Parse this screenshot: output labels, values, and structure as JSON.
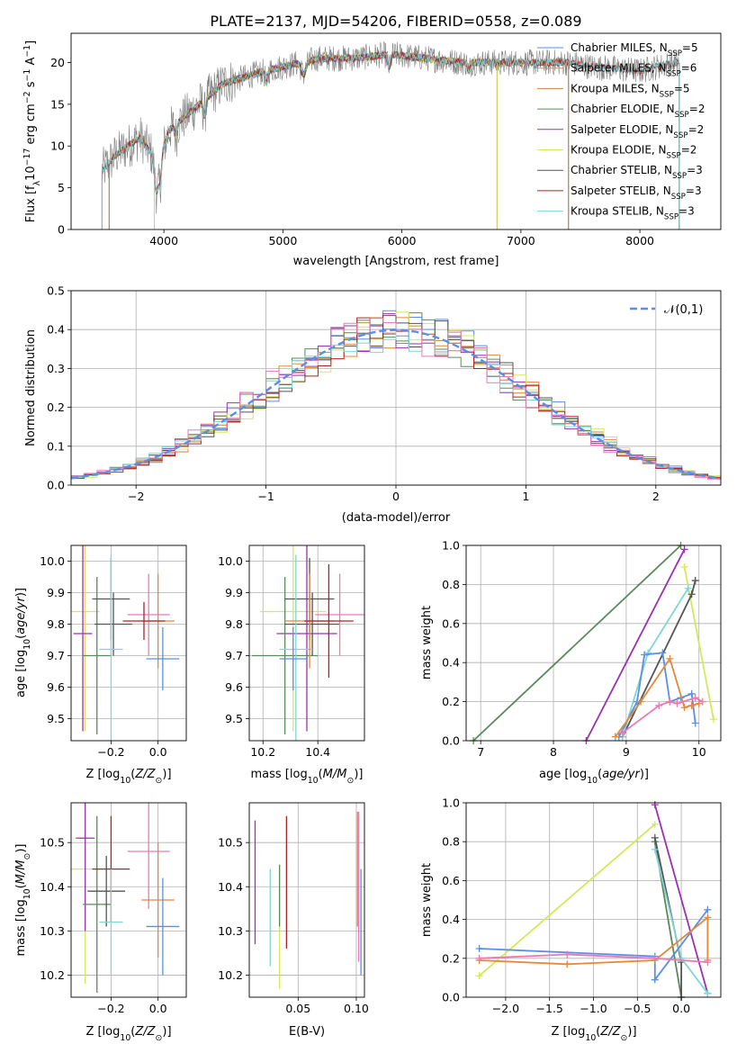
{
  "title": "PLATE=2137, MJD=54206, FIBERID=0558, z=0.089",
  "colors": {
    "chabrier_miles": "#5b8ee6",
    "salpeter_miles": "#e6883a",
    "kroupa_miles": "#c8863a",
    "chabrier_elodie": "#5a8a5a",
    "salpeter_elodie": "#9b30b0",
    "kroupa_elodie": "#d4e85a",
    "chabrier_stelib": "#555555",
    "salpeter_stelib": "#b22222",
    "kroupa_stelib": "#7fd6d6",
    "pink": "#e87ab6",
    "normal_curve": "#5b8ee6"
  },
  "chart_data": [
    {
      "id": "spectrum",
      "type": "line",
      "xlabel": "wavelength [Angstrom, rest frame]",
      "ylabel": "Flux [f_λ 10^-17 erg cm^-2 s^-1 A^-1]",
      "xlim": [
        3220,
        8680
      ],
      "ylim": [
        0,
        23.5
      ],
      "xticks": [
        "4000",
        "5000",
        "6000",
        "7000",
        "8000"
      ],
      "yticks": [
        "0",
        "5",
        "10",
        "15",
        "20"
      ],
      "legend": [
        "Chabrier MILES, N_SSP=5",
        "Salpeter MILES, N_SSP=6",
        "Kroupa MILES, N_SSP=5",
        "Chabrier ELODIE, N_SSP=2",
        "Salpeter ELODIE, N_SSP=2",
        "Kroupa ELODIE, N_SSP=2",
        "Chabrier STELIB, N_SSP=3",
        "Salpeter STELIB, N_SSP=3",
        "Kroupa STELIB, N_SSP=3"
      ],
      "legend_position": "top-right",
      "continuum": {
        "wavelength": [
          3480,
          3600,
          3800,
          3950,
          4050,
          4300,
          4500,
          4860,
          5000,
          5300,
          5600,
          5900,
          6200,
          6500,
          6800,
          7100,
          7400,
          7600,
          8000,
          8300
        ],
        "flux": [
          7,
          9,
          11,
          8,
          12,
          15,
          17.5,
          19,
          19.5,
          20.5,
          20.5,
          21,
          20.5,
          20,
          20,
          20,
          20,
          19.5,
          19,
          20
        ]
      }
    },
    {
      "id": "residuals",
      "type": "line",
      "xlabel": "(data-model)/error",
      "ylabel": "Normed distribution",
      "xlim": [
        -2.5,
        2.5
      ],
      "ylim": [
        0,
        0.5
      ],
      "xticks": [
        "−2",
        "−1",
        "0",
        "1",
        "2"
      ],
      "yticks": [
        "0.0",
        "0.1",
        "0.2",
        "0.3",
        "0.4",
        "0.5"
      ],
      "legend": [
        "𝒩(0,1)"
      ],
      "legend_position": "top-right",
      "grid": true
    },
    {
      "id": "age_vs_Z",
      "type": "scatter",
      "xlabel": "Z [log10(Z/Z⊙)]",
      "ylabel": "age  [log10(age/yr)]",
      "xlim": [
        -0.37,
        0.12
      ],
      "ylim": [
        9.43,
        10.05
      ],
      "xticks": [
        "−0.2",
        "0.0"
      ],
      "yticks": [
        "9.5",
        "9.6",
        "9.7",
        "9.8",
        "9.9",
        "10.0"
      ],
      "grid": true,
      "points": [
        {
          "x": -0.31,
          "y": 9.84,
          "xerr": 0.06,
          "yerr": 0.38,
          "color": "kroupa_elodie"
        },
        {
          "x": -0.32,
          "y": 9.77,
          "xerr": 0.04,
          "yerr": 0.31,
          "color": "salpeter_elodie"
        },
        {
          "x": -0.26,
          "y": 9.7,
          "xerr": 0.06,
          "yerr": 0.25,
          "color": "chabrier_elodie"
        },
        {
          "x": -0.2,
          "y": 9.88,
          "xerr": 0.08,
          "yerr": 0.13,
          "color": "chabrier_stelib"
        },
        {
          "x": -0.19,
          "y": 9.8,
          "xerr": 0.08,
          "yerr": 0.1,
          "color": "chabrier_stelib"
        },
        {
          "x": -0.2,
          "y": 9.72,
          "xerr": 0.05,
          "yerr": 0.3,
          "color": "kroupa_stelib"
        },
        {
          "x": -0.04,
          "y": 9.83,
          "xerr": 0.09,
          "yerr": 0.13,
          "color": "pink"
        },
        {
          "x": 0.0,
          "y": 9.81,
          "xerr": 0.07,
          "yerr": 0.15,
          "color": "salpeter_miles"
        },
        {
          "x": 0.02,
          "y": 9.69,
          "xerr": 0.07,
          "yerr": 0.1,
          "color": "chabrier_miles"
        },
        {
          "x": -0.06,
          "y": 9.81,
          "xerr": 0.09,
          "yerr": 0.06,
          "color": "salpeter_stelib"
        }
      ]
    },
    {
      "id": "age_vs_mass",
      "type": "scatter",
      "xlabel": "mass [log10(M/M⊙)]",
      "ylabel": "",
      "xlim": [
        10.15,
        10.57
      ],
      "ylim": [
        9.43,
        10.05
      ],
      "xticks": [
        "10.2",
        "10.4"
      ],
      "yticks": [
        "9.5",
        "9.6",
        "9.7",
        "9.8",
        "9.9",
        "10.0"
      ],
      "grid": true,
      "points": [
        {
          "x": 10.31,
          "y": 9.84,
          "xerr": 0.12,
          "yerr": 0.38,
          "color": "kroupa_elodie"
        },
        {
          "x": 10.36,
          "y": 9.77,
          "xerr": 0.11,
          "yerr": 0.31,
          "color": "salpeter_elodie"
        },
        {
          "x": 10.28,
          "y": 9.7,
          "xerr": 0.12,
          "yerr": 0.25,
          "color": "chabrier_elodie"
        },
        {
          "x": 10.37,
          "y": 9.88,
          "xerr": 0.09,
          "yerr": 0.13,
          "color": "chabrier_stelib"
        },
        {
          "x": 10.38,
          "y": 9.8,
          "xerr": 0.1,
          "yerr": 0.1,
          "color": "chabrier_stelib"
        },
        {
          "x": 10.32,
          "y": 9.72,
          "xerr": 0.06,
          "yerr": 0.3,
          "color": "kroupa_stelib"
        },
        {
          "x": 10.48,
          "y": 9.83,
          "xerr": 0.09,
          "yerr": 0.13,
          "color": "pink"
        },
        {
          "x": 10.37,
          "y": 9.81,
          "xerr": 0.09,
          "yerr": 0.15,
          "color": "salpeter_miles"
        },
        {
          "x": 10.31,
          "y": 9.69,
          "xerr": 0.05,
          "yerr": 0.1,
          "color": "chabrier_miles"
        },
        {
          "x": 10.44,
          "y": 9.81,
          "xerr": 0.09,
          "yerr": 0.18,
          "color": "salpeter_stelib"
        }
      ]
    },
    {
      "id": "mass_weight_vs_age",
      "type": "line",
      "xlabel": "age  [log10(age/yr)]",
      "ylabel": "mass weight",
      "xlim": [
        6.8,
        10.3
      ],
      "ylim": [
        0,
        1
      ],
      "xticks": [
        "7",
        "8",
        "9",
        "10"
      ],
      "yticks": [
        "0.0",
        "0.2",
        "0.4",
        "0.6",
        "0.8",
        "1.0"
      ],
      "grid": true,
      "series": [
        {
          "color": "chabrier_elodie",
          "x": [
            6.9,
            9.75
          ],
          "y": [
            0,
            1.0
          ]
        },
        {
          "color": "salpeter_elodie",
          "x": [
            8.45,
            9.8
          ],
          "y": [
            0,
            0.98
          ]
        },
        {
          "color": "kroupa_elodie",
          "x": [
            9.8,
            10.2
          ],
          "y": [
            0.89,
            0.11
          ]
        },
        {
          "color": "chabrier_stelib",
          "x": [
            8.95,
            9.9,
            9.95
          ],
          "y": [
            0.02,
            0.75,
            0.82
          ]
        },
        {
          "color": "kroupa_stelib",
          "x": [
            8.95,
            9.3,
            9.85
          ],
          "y": [
            0.02,
            0.45,
            0.78
          ]
        },
        {
          "color": "chabrier_miles",
          "x": [
            8.9,
            9.15,
            9.25,
            9.5,
            9.6,
            9.75,
            9.9,
            9.95
          ],
          "y": [
            0.02,
            0.2,
            0.44,
            0.45,
            0.2,
            0.22,
            0.24,
            0.09
          ]
        },
        {
          "color": "salpeter_miles",
          "x": [
            8.85,
            9.2,
            9.6,
            9.8,
            9.9,
            10.0
          ],
          "y": [
            0.02,
            0.2,
            0.42,
            0.17,
            0.18,
            0.19
          ]
        },
        {
          "color": "pink",
          "x": [
            8.95,
            9.45,
            9.6,
            9.7,
            9.95,
            10.05
          ],
          "y": [
            0.04,
            0.18,
            0.2,
            0.19,
            0.22,
            0.2
          ]
        }
      ]
    },
    {
      "id": "mass_vs_Z",
      "type": "scatter",
      "xlabel": "Z [log10(Z/Z⊙)]",
      "ylabel": "mass [log10(M/M⊙)]",
      "xlim": [
        -0.37,
        0.12
      ],
      "ylim": [
        10.15,
        10.59
      ],
      "xticks": [
        "−0.2",
        "0.0"
      ],
      "yticks": [
        "10.2",
        "10.3",
        "10.4",
        "10.5"
      ],
      "grid": true,
      "points": [
        {
          "x": -0.31,
          "y": 10.44,
          "xerr": 0.06,
          "yerr": 0.26,
          "color": "kroupa_elodie"
        },
        {
          "x": -0.31,
          "y": 10.51,
          "xerr": 0.04,
          "yerr": 0.21,
          "color": "salpeter_elodie"
        },
        {
          "x": -0.26,
          "y": 10.36,
          "xerr": 0.06,
          "yerr": 0.2,
          "color": "chabrier_elodie"
        },
        {
          "x": -0.22,
          "y": 10.39,
          "xerr": 0.08,
          "yerr": 0.08,
          "color": "chabrier_stelib"
        },
        {
          "x": -0.2,
          "y": 10.44,
          "xerr": 0.08,
          "yerr": 0.12,
          "color": "salpeter_stelib"
        },
        {
          "x": -0.2,
          "y": 10.32,
          "xerr": 0.05,
          "yerr": 0.12,
          "color": "kroupa_stelib"
        },
        {
          "x": -0.04,
          "y": 10.48,
          "xerr": 0.09,
          "yerr": 0.13,
          "color": "pink"
        },
        {
          "x": 0.0,
          "y": 10.37,
          "xerr": 0.07,
          "yerr": 0.13,
          "color": "salpeter_miles"
        },
        {
          "x": 0.02,
          "y": 10.31,
          "xerr": 0.07,
          "yerr": 0.11,
          "color": "chabrier_miles"
        }
      ]
    },
    {
      "id": "mass_vs_ebv",
      "type": "scatter",
      "xlabel": "E(B-V)",
      "ylabel": "",
      "xlim": [
        0.008,
        0.107
      ],
      "ylim": [
        10.15,
        10.59
      ],
      "xticks": [
        "0.05",
        "0.10"
      ],
      "yticks": [
        "10.2",
        "10.3",
        "10.4",
        "10.5"
      ],
      "grid": true,
      "points": [
        {
          "x": 0.013,
          "y": 10.41,
          "yerr": 0.14,
          "color": "salpeter_elodie"
        },
        {
          "x": 0.026,
          "y": 10.33,
          "yerr": 0.11,
          "color": "kroupa_stelib"
        },
        {
          "x": 0.034,
          "y": 10.31,
          "yerr": 0.14,
          "color": "kroupa_elodie"
        },
        {
          "x": 0.034,
          "y": 10.38,
          "yerr": 0.07,
          "color": "chabrier_elodie"
        },
        {
          "x": 0.04,
          "y": 10.41,
          "yerr": 0.15,
          "color": "salpeter_stelib"
        },
        {
          "x": 0.101,
          "y": 10.44,
          "yerr": 0.13,
          "color": "salpeter_miles"
        },
        {
          "x": 0.102,
          "y": 10.4,
          "yerr": 0.17,
          "color": "pink"
        },
        {
          "x": 0.104,
          "y": 10.32,
          "yerr": 0.12,
          "color": "chabrier_miles"
        }
      ]
    },
    {
      "id": "mass_weight_vs_Z",
      "type": "line",
      "xlabel": "Z [log10(Z/Z⊙)]",
      "ylabel": "mass weight",
      "xlim": [
        -2.45,
        0.45
      ],
      "ylim": [
        0,
        1
      ],
      "xticks": [
        "−2.0",
        "−1.5",
        "−1.0",
        "−0.5",
        "0.0"
      ],
      "yticks": [
        "0.0",
        "0.2",
        "0.4",
        "0.6",
        "0.8",
        "1.0"
      ],
      "grid": true,
      "series": [
        {
          "color": "kroupa_elodie",
          "x": [
            -2.3,
            -0.3
          ],
          "y": [
            0.11,
            0.89
          ]
        },
        {
          "color": "salpeter_elodie",
          "x": [
            -0.3,
            0.3
          ],
          "y": [
            0.99,
            0.02
          ]
        },
        {
          "color": "chabrier_elodie",
          "x": [
            -0.3,
            0.0
          ],
          "y": [
            0.8,
            0.0
          ]
        },
        {
          "color": "chabrier_stelib",
          "x": [
            -0.3,
            0.0,
            0.0
          ],
          "y": [
            0.82,
            0.18,
            0.0
          ]
        },
        {
          "color": "kroupa_stelib",
          "x": [
            -0.3,
            0.0,
            0.3
          ],
          "y": [
            0.76,
            0.2,
            0.02
          ]
        },
        {
          "color": "chabrier_miles",
          "x": [
            -2.3,
            -0.3,
            -0.3,
            0.3
          ],
          "y": [
            0.25,
            0.21,
            0.09,
            0.45
          ]
        },
        {
          "color": "salpeter_miles",
          "x": [
            -2.3,
            -1.3,
            -0.3,
            0.3,
            0.3
          ],
          "y": [
            0.19,
            0.17,
            0.19,
            0.41,
            0.19
          ]
        },
        {
          "color": "pink",
          "x": [
            -2.3,
            -1.3,
            -0.3,
            0.3
          ],
          "y": [
            0.2,
            0.22,
            0.2,
            0.18
          ]
        }
      ]
    }
  ]
}
